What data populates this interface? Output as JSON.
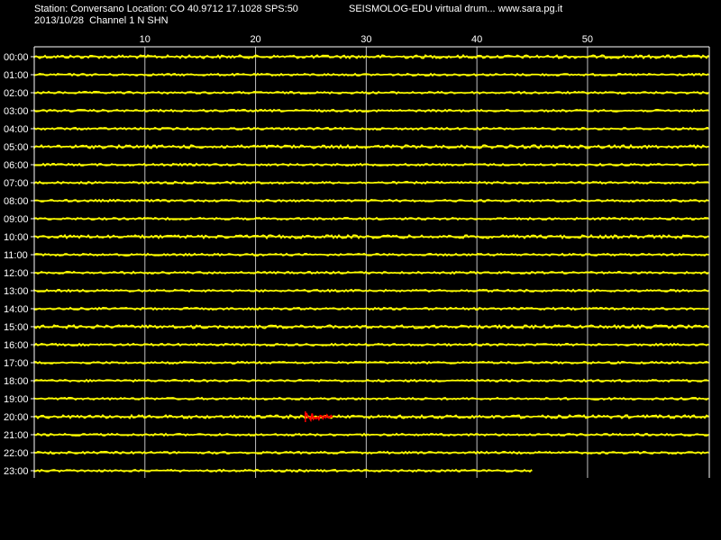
{
  "header": {
    "station_line": "Station: Conversano Location: CO 40.9712 17.1028 SPS:50",
    "date_line": "2013/10/28  Channel 1 N SHN",
    "brand_line": "SEISMOLOG-EDU virtual drum... www.sara.pg.it"
  },
  "colors": {
    "background": "#000000",
    "frame": "#ffffff",
    "gridline": "#c0c0c0",
    "trace": "#ffff00",
    "event": "#ff0000",
    "text": "#ffffff"
  },
  "minute_axis": {
    "ticks": [
      10,
      20,
      30,
      40,
      50
    ],
    "labels": [
      "10",
      "20",
      "30",
      "40",
      "50"
    ],
    "range": [
      0,
      61
    ]
  },
  "hours": [
    {
      "label": "00:00",
      "end_minute": 61
    },
    {
      "label": "01:00",
      "end_minute": 61
    },
    {
      "label": "02:00",
      "end_minute": 61
    },
    {
      "label": "03:00",
      "end_minute": 61
    },
    {
      "label": "04:00",
      "end_minute": 61
    },
    {
      "label": "05:00",
      "end_minute": 61
    },
    {
      "label": "06:00",
      "end_minute": 61
    },
    {
      "label": "07:00",
      "end_minute": 61
    },
    {
      "label": "08:00",
      "end_minute": 61
    },
    {
      "label": "09:00",
      "end_minute": 61
    },
    {
      "label": "10:00",
      "end_minute": 61
    },
    {
      "label": "11:00",
      "end_minute": 61
    },
    {
      "label": "12:00",
      "end_minute": 61
    },
    {
      "label": "13:00",
      "end_minute": 61
    },
    {
      "label": "14:00",
      "end_minute": 61
    },
    {
      "label": "15:00",
      "end_minute": 61
    },
    {
      "label": "16:00",
      "end_minute": 61
    },
    {
      "label": "17:00",
      "end_minute": 61
    },
    {
      "label": "18:00",
      "end_minute": 61
    },
    {
      "label": "19:00",
      "end_minute": 61
    },
    {
      "label": "20:00",
      "end_minute": 61
    },
    {
      "label": "21:00",
      "end_minute": 61
    },
    {
      "label": "22:00",
      "end_minute": 61
    },
    {
      "label": "23:00",
      "end_minute": 45
    }
  ],
  "events": [
    {
      "hour": "20:00",
      "start_minute": 24.5,
      "end_minute": 27
    }
  ]
}
